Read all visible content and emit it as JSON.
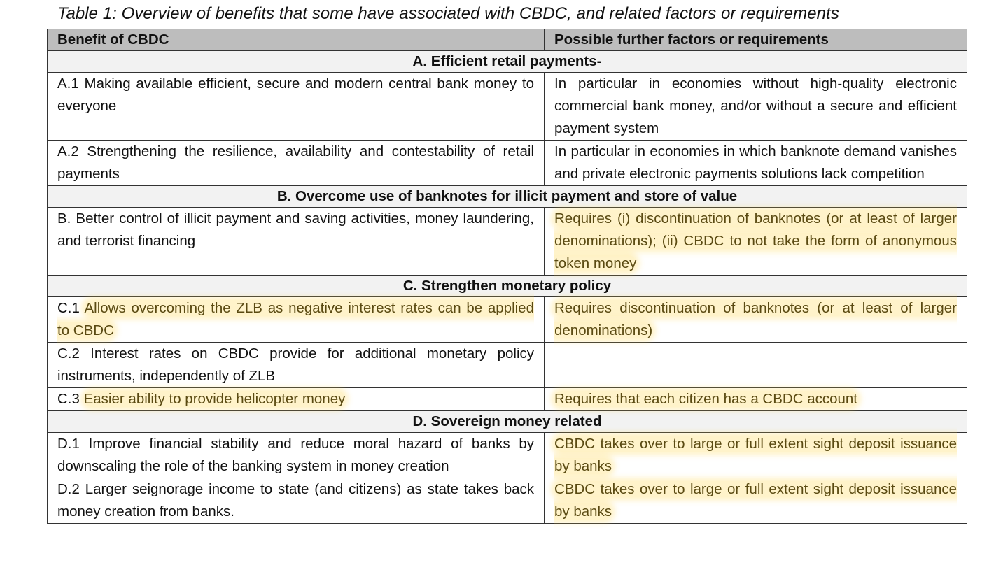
{
  "caption": "Table 1: Overview of benefits that some have associated with CBDC, and related factors or requirements",
  "headers": {
    "benefit": "Benefit of CBDC",
    "factors": "Possible further factors or requirements"
  },
  "sections": {
    "a": "A. Efficient retail payments-",
    "b": "B. Overcome use of banknotes for illicit payment and store of value",
    "c": "C. Strengthen monetary policy",
    "d": "D. Sovereign money related"
  },
  "rows": {
    "a1": {
      "benefit": "A.1 Making available efficient, secure and modern central bank money to everyone",
      "factors": "In particular in economies without high-quality electronic commercial bank money, and/or without a secure and efficient payment system"
    },
    "a2": {
      "benefit": "A.2 Strengthening the resilience, availability and contestability of retail payments",
      "factors": "In particular in economies in which banknote demand vanishes and private electronic payments solutions lack competition"
    },
    "b": {
      "benefit": "B. Better control of illicit payment and saving activities, money laundering, and terrorist financing",
      "factors": "Requires (i) discontinuation of banknotes (or at least of larger denominations); (ii) CBDC to not take the form of anonymous token money"
    },
    "c1": {
      "benefit_prefix": "C.1 ",
      "benefit_highlight": "Allows overcoming the ZLB as negative interest rates can be applied to CBDC",
      "factors": "Requires discontinuation of banknotes (or at least of larger denominations)"
    },
    "c2": {
      "benefit": "C.2 Interest rates on CBDC provide for additional monetary policy instruments, independently of ZLB",
      "factors": ""
    },
    "c3": {
      "benefit_prefix": "C.3 ",
      "benefit_highlight": "Easier ability to provide helicopter money",
      "factors": "Requires that each citizen has a CBDC account"
    },
    "d1": {
      "benefit": "D.1 Improve financial stability and reduce moral hazard of banks by downscaling the role of the banking system in money creation",
      "factors": "CBDC takes over to large or full extent sight deposit issuance by banks"
    },
    "d2": {
      "benefit": "D.2 Larger seignorage income to state (and citizens) as state takes back money creation from banks.",
      "factors": "CBDC takes over to large or full extent sight deposit issuance by banks"
    }
  },
  "colors": {
    "header_bg": "#bdbdbd",
    "section_bg": "#f2f2f2",
    "highlight": "#ffd650"
  }
}
